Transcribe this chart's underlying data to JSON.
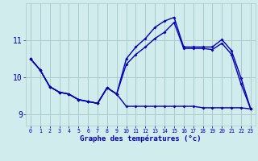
{
  "xlabel": "Graphe des températures (°c)",
  "bg_color": "#d0ecec",
  "grid_color": "#aacccc",
  "line_color": "#0000bb",
  "hours": [
    0,
    1,
    2,
    3,
    4,
    5,
    6,
    7,
    8,
    9,
    10,
    11,
    12,
    13,
    14,
    15,
    16,
    17,
    18,
    19,
    20,
    21,
    22,
    23
  ],
  "series1": [
    10.5,
    10.2,
    9.75,
    9.6,
    9.55,
    9.4,
    9.35,
    9.3,
    9.72,
    9.55,
    10.5,
    10.82,
    11.05,
    11.35,
    11.52,
    11.62,
    10.82,
    10.82,
    10.82,
    10.82,
    11.02,
    10.72,
    9.98,
    9.15
  ],
  "series2": [
    10.5,
    10.2,
    9.75,
    9.6,
    9.55,
    9.4,
    9.35,
    9.3,
    9.72,
    9.55,
    10.35,
    10.62,
    10.82,
    11.05,
    11.22,
    11.48,
    10.78,
    10.78,
    10.78,
    10.75,
    10.92,
    10.62,
    9.82,
    9.15
  ],
  "series3": [
    10.5,
    10.2,
    9.75,
    9.6,
    9.55,
    9.4,
    9.35,
    9.3,
    9.72,
    9.55,
    9.22,
    9.22,
    9.22,
    9.22,
    9.22,
    9.22,
    9.22,
    9.22,
    9.18,
    9.18,
    9.18,
    9.18,
    9.18,
    9.15
  ],
  "ylim": [
    8.7,
    12.0
  ],
  "yticks": [
    9,
    10,
    11
  ],
  "xlim": [
    -0.5,
    23.5
  ]
}
